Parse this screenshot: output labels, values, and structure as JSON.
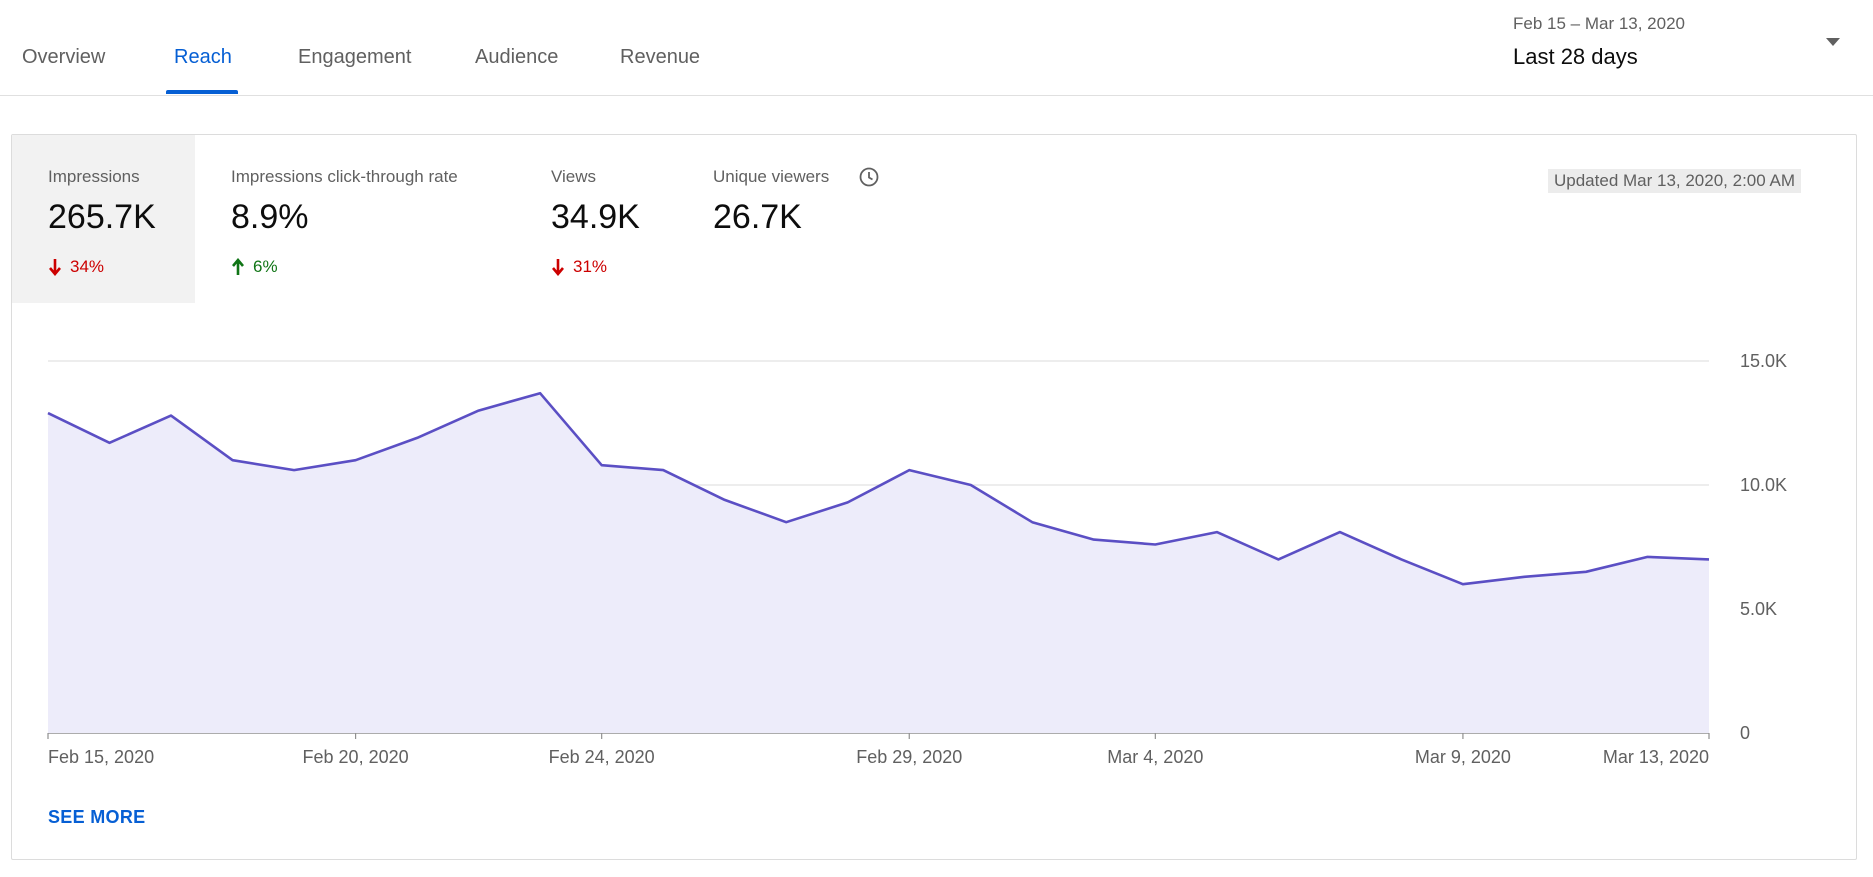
{
  "tabs": [
    {
      "label": "Overview",
      "active": false
    },
    {
      "label": "Reach",
      "active": true
    },
    {
      "label": "Engagement",
      "active": false
    },
    {
      "label": "Audience",
      "active": false
    },
    {
      "label": "Revenue",
      "active": false
    }
  ],
  "date_range": {
    "range_text": "Feb 15 – Mar 13, 2020",
    "label": "Last 28 days"
  },
  "metrics": [
    {
      "label": "Impressions",
      "value": "265.7K",
      "delta": "34%",
      "direction": "down",
      "selected": true
    },
    {
      "label": "Impressions click-through rate",
      "value": "8.9%",
      "delta": "6%",
      "direction": "up",
      "selected": false
    },
    {
      "label": "Views",
      "value": "34.9K",
      "delta": "31%",
      "direction": "down",
      "selected": false
    },
    {
      "label": "Unique viewers",
      "value": "26.7K",
      "delta": "",
      "direction": "none",
      "selected": false,
      "icon": "clock-icon"
    }
  ],
  "updated_text": "Updated Mar 13, 2020, 2:00 AM",
  "see_more_label": "SEE MORE",
  "colors": {
    "accent": "#065fd4",
    "line": "#5b4fc4",
    "area": "#edecfa",
    "down": "#cc0000",
    "up": "#107516"
  },
  "chart_data": {
    "type": "area",
    "x": [
      "Feb 15, 2020",
      "Feb 16, 2020",
      "Feb 17, 2020",
      "Feb 18, 2020",
      "Feb 19, 2020",
      "Feb 20, 2020",
      "Feb 21, 2020",
      "Feb 22, 2020",
      "Feb 23, 2020",
      "Feb 24, 2020",
      "Feb 25, 2020",
      "Feb 26, 2020",
      "Feb 27, 2020",
      "Feb 28, 2020",
      "Feb 29, 2020",
      "Mar 1, 2020",
      "Mar 2, 2020",
      "Mar 3, 2020",
      "Mar 4, 2020",
      "Mar 5, 2020",
      "Mar 6, 2020",
      "Mar 7, 2020",
      "Mar 8, 2020",
      "Mar 9, 2020",
      "Mar 10, 2020",
      "Mar 11, 2020",
      "Mar 12, 2020",
      "Mar 13, 2020"
    ],
    "series": [
      {
        "values": [
          12900,
          11700,
          12800,
          11000,
          10600,
          11000,
          11900,
          13000,
          13700,
          10800,
          10600,
          9400,
          8500,
          9300,
          10600,
          10000,
          8500,
          7800,
          7600,
          8100,
          7000,
          8100,
          7000,
          6000,
          6300,
          6500,
          7100,
          7000
        ]
      }
    ],
    "x_tick_labels": [
      "Feb 15, 2020",
      "Feb 20, 2020",
      "Feb 24, 2020",
      "Feb 29, 2020",
      "Mar 4, 2020",
      "Mar 9, 2020",
      "Mar 13, 2020"
    ],
    "y_tick_labels": [
      "0",
      "5.0K",
      "10.0K",
      "15.0K"
    ],
    "y_ticks": [
      0,
      5000,
      10000,
      15000
    ],
    "ylim": [
      0,
      15000
    ],
    "grid": true,
    "y_axis_position": "right"
  }
}
